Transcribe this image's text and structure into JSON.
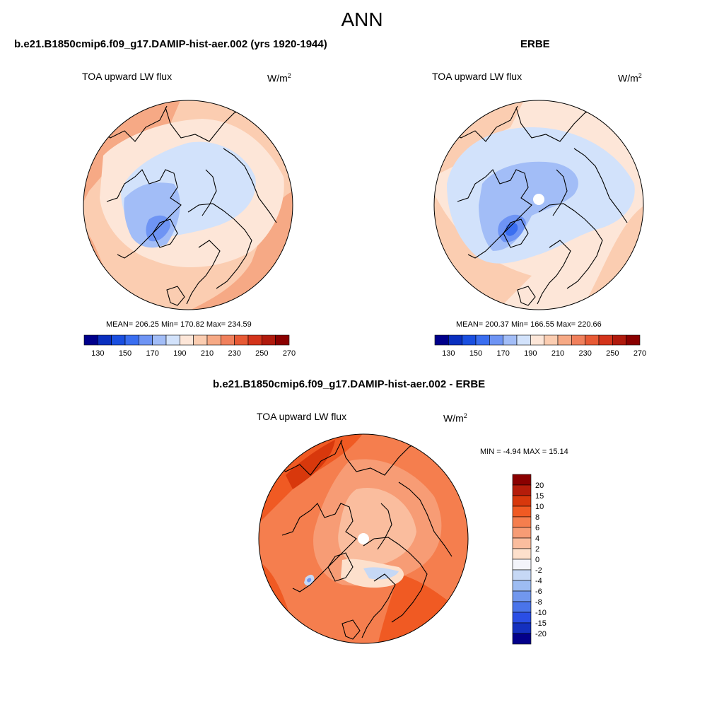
{
  "season": "ANN",
  "units": {
    "base": "W/m",
    "exp": "2"
  },
  "panels": [
    {
      "title": "b.e21.B1850cmip6.f09_g17.DAMIP-hist-aer.002 (yrs 1920-1944)",
      "field": "TOA upward LW flux",
      "stats": "MEAN= 206.25  Min= 170.82  Max= 234.59",
      "mean": 206.25,
      "min": 170.82,
      "max": 234.59
    },
    {
      "title": "ERBE",
      "field": "TOA upward LW flux",
      "stats": "MEAN= 200.37  Min= 166.55  Max= 220.66",
      "mean": 200.37,
      "min": 166.55,
      "max": 220.66
    },
    {
      "title": "b.e21.B1850cmip6.f09_g17.DAMIP-hist-aer.002 - ERBE",
      "field": "TOA upward LW flux",
      "stats": "MIN =  -4.94 MAX =  15.14",
      "min": -4.94,
      "max": 15.14
    }
  ],
  "abs_colorbar": {
    "colors": [
      "#00008b",
      "#0a2fbf",
      "#1a4fe0",
      "#3a6ef0",
      "#6e94f4",
      "#a2bdf7",
      "#d2e2fb",
      "#fde6d8",
      "#fbcdb1",
      "#f6a985",
      "#f0805c",
      "#e75a35",
      "#d3341b",
      "#b01a0d",
      "#8a0000"
    ],
    "labels": [
      "130",
      "150",
      "170",
      "190",
      "210",
      "230",
      "250",
      "270"
    ]
  },
  "diff_colorbar": {
    "colors": [
      "#8a0000",
      "#b51c0a",
      "#d8380c",
      "#f05a23",
      "#f57e4e",
      "#f79c75",
      "#fabd9e",
      "#fde0cc",
      "#f3f4fa",
      "#c6d8f5",
      "#9dbcf2",
      "#7197ee",
      "#4a74ea",
      "#2a4ee5",
      "#1430bf",
      "#03008a"
    ],
    "labels": [
      "20",
      "15",
      "10",
      "8",
      "6",
      "4",
      "2",
      "0",
      "-2",
      "-4",
      "-6",
      "-8",
      "-10",
      "-15",
      "-20"
    ]
  },
  "chart_data": {
    "type": "heatmap",
    "title": "ANN",
    "variable": "TOA upward LW flux",
    "units": "W/m2",
    "projection": "North Polar Stereographic",
    "maps": [
      {
        "name": "b.e21.B1850cmip6.f09_g17.DAMIP-hist-aer.002 (yrs 1920-1944)",
        "mean": 206.25,
        "min": 170.82,
        "max": 234.59,
        "contour_levels": [
          130,
          140,
          150,
          160,
          170,
          180,
          190,
          200,
          210,
          220,
          230,
          240,
          250,
          260,
          270
        ]
      },
      {
        "name": "ERBE",
        "mean": 200.37,
        "min": 166.55,
        "max": 220.66,
        "contour_levels": [
          130,
          140,
          150,
          160,
          170,
          180,
          190,
          200,
          210,
          220,
          230,
          240,
          250,
          260,
          270
        ]
      },
      {
        "name": "b.e21.B1850cmip6.f09_g17.DAMIP-hist-aer.002 - ERBE",
        "min": -4.94,
        "max": 15.14,
        "contour_levels": [
          -20,
          -15,
          -10,
          -8,
          -6,
          -4,
          -2,
          0,
          2,
          4,
          6,
          8,
          10,
          15,
          20
        ]
      }
    ]
  }
}
